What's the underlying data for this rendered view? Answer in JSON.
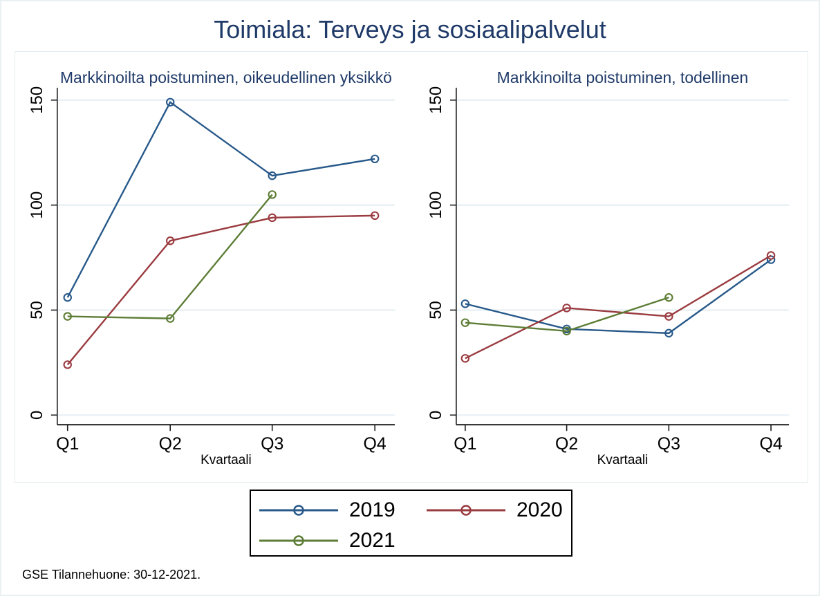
{
  "figure": {
    "title": "Toimiala: Terveys ja sosiaalipalvelut",
    "source_note": "GSE Tilannehuone: 30-12-2021."
  },
  "colors": {
    "title": "#1f3a68",
    "panel_title": "#1f3a68",
    "axis": "#1a1a1a",
    "gridline": "#e4eef2",
    "panel_border": "#e2ebee",
    "figure_border": "#e9f1f3",
    "legend_border": "#000000",
    "series": {
      "2019": "#27598a",
      "2020": "#9a3b40",
      "2021": "#5d7d36"
    }
  },
  "legend": {
    "position": "bottom",
    "columns": 2,
    "items": [
      {
        "label": "2019"
      },
      {
        "label": "2020"
      },
      {
        "label": "2021"
      }
    ]
  },
  "chart_data": [
    {
      "type": "line",
      "title": "Markkinoilta poistuminen, oikeudellinen yksikkö",
      "categories": [
        "Q1",
        "Q2",
        "Q3",
        "Q4"
      ],
      "xlabel": "Kvartaali",
      "ylabel": "",
      "yticks": [
        0,
        50,
        100,
        150
      ],
      "ylim": [
        0,
        157
      ],
      "grid": true,
      "marker": "circle-hollow",
      "series": [
        {
          "name": "2019",
          "values": [
            56,
            149,
            114,
            122
          ]
        },
        {
          "name": "2020",
          "values": [
            24,
            83,
            94,
            95
          ]
        },
        {
          "name": "2021",
          "values": [
            47,
            46,
            105,
            null
          ]
        }
      ]
    },
    {
      "type": "line",
      "title": "Markkinoilta poistuminen, todellinen",
      "categories": [
        "Q1",
        "Q2",
        "Q3",
        "Q4"
      ],
      "xlabel": "Kvartaali",
      "ylabel": "",
      "yticks": [
        0,
        50,
        100,
        150
      ],
      "ylim": [
        0,
        157
      ],
      "grid": true,
      "marker": "circle-hollow",
      "series": [
        {
          "name": "2019",
          "values": [
            53,
            41,
            39,
            74
          ]
        },
        {
          "name": "2020",
          "values": [
            27,
            51,
            47,
            76
          ]
        },
        {
          "name": "2021",
          "values": [
            44,
            40,
            56,
            null
          ]
        }
      ]
    }
  ]
}
